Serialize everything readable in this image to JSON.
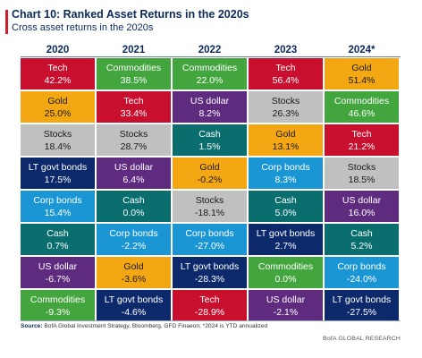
{
  "header": {
    "title": "Chart 10: Ranked Asset Returns in the 2020s",
    "subtitle": "Cross asset returns in the 2020s"
  },
  "footer": {
    "source_label": "Source:",
    "source_text": "BofA Global Investment Strategy, Bloomberg, GFD Finaeon; *2024 is YTD annualized",
    "brand": "BofA GLOBAL RESEARCH"
  },
  "colors": {
    "Tech": "#c8102e",
    "Commodities": "#43a53d",
    "Gold": "#f3a712",
    "US dollar": "#5e2b7e",
    "Stocks": "#c0c0c0",
    "Cash": "#0b6e6e",
    "LT govt bonds": "#0c2a6b",
    "Corp bonds": "#1a96d4"
  },
  "chart_data": {
    "type": "table",
    "title": "Chart 10: Ranked Asset Returns in the 2020s",
    "subtitle": "Cross asset returns in the 2020s",
    "columns": [
      "2020",
      "2021",
      "2022",
      "2023",
      "2024*"
    ],
    "rows": [
      [
        {
          "asset": "Tech",
          "value": "42.2%"
        },
        {
          "asset": "Commodities",
          "value": "38.5%"
        },
        {
          "asset": "Commodities",
          "value": "22.0%"
        },
        {
          "asset": "Tech",
          "value": "56.4%"
        },
        {
          "asset": "Gold",
          "value": "51.4%"
        }
      ],
      [
        {
          "asset": "Gold",
          "value": "25.0%"
        },
        {
          "asset": "Tech",
          "value": "33.4%"
        },
        {
          "asset": "US dollar",
          "value": "8.2%"
        },
        {
          "asset": "Stocks",
          "value": "26.3%"
        },
        {
          "asset": "Commodities",
          "value": "46.6%"
        }
      ],
      [
        {
          "asset": "Stocks",
          "value": "18.4%"
        },
        {
          "asset": "Stocks",
          "value": "28.7%"
        },
        {
          "asset": "Cash",
          "value": "1.5%"
        },
        {
          "asset": "Gold",
          "value": "13.1%"
        },
        {
          "asset": "Tech",
          "value": "21.2%"
        }
      ],
      [
        {
          "asset": "LT govt bonds",
          "value": "17.5%"
        },
        {
          "asset": "US dollar",
          "value": "6.4%"
        },
        {
          "asset": "Gold",
          "value": "-0.2%"
        },
        {
          "asset": "Corp bonds",
          "value": "8.3%"
        },
        {
          "asset": "Stocks",
          "value": "18.5%"
        }
      ],
      [
        {
          "asset": "Corp bonds",
          "value": "15.4%"
        },
        {
          "asset": "Cash",
          "value": "0.0%"
        },
        {
          "asset": "Stocks",
          "value": "-18.1%"
        },
        {
          "asset": "Cash",
          "value": "5.0%"
        },
        {
          "asset": "US dollar",
          "value": "16.0%"
        }
      ],
      [
        {
          "asset": "Cash",
          "value": "0.7%"
        },
        {
          "asset": "Corp bonds",
          "value": "-2.2%"
        },
        {
          "asset": "Corp bonds",
          "value": "-27.0%"
        },
        {
          "asset": "LT govt bonds",
          "value": "2.7%"
        },
        {
          "asset": "Cash",
          "value": "5.2%"
        }
      ],
      [
        {
          "asset": "US dollar",
          "value": "-6.7%"
        },
        {
          "asset": "Gold",
          "value": "-3.6%"
        },
        {
          "asset": "LT govt bonds",
          "value": "-28.3%"
        },
        {
          "asset": "Commodities",
          "value": "0.0%"
        },
        {
          "asset": "Corp bonds",
          "value": "-24.0%"
        }
      ],
      [
        {
          "asset": "Commodities",
          "value": "-9.3%"
        },
        {
          "asset": "LT govt bonds",
          "value": "-4.6%"
        },
        {
          "asset": "Tech",
          "value": "-28.9%"
        },
        {
          "asset": "US dollar",
          "value": "-2.1%"
        },
        {
          "asset": "LT govt bonds",
          "value": "-27.5%"
        }
      ]
    ]
  }
}
